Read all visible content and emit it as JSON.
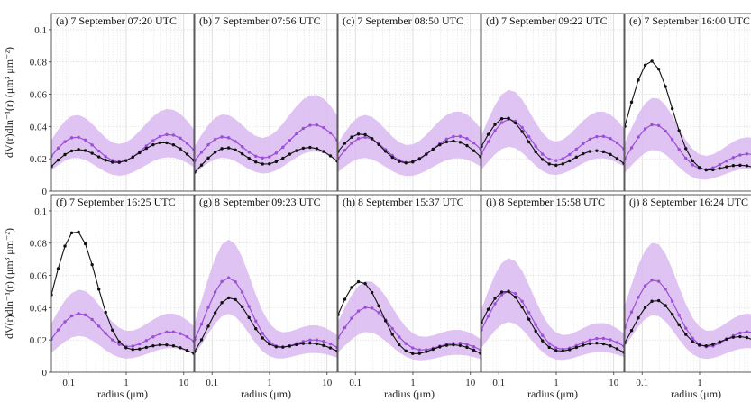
{
  "chart_data": {
    "type": "line",
    "x_scale": "log",
    "xlim": [
      0.05,
      15
    ],
    "ylim": [
      0,
      0.11
    ],
    "yticks": [
      "0",
      "0.02",
      "0.04",
      "0.06",
      "0.08",
      "0.1"
    ],
    "xticks": [
      "0.1",
      "1",
      "10"
    ],
    "ylabel": "dV(r)dln⁻¹(r) (μm³ μm⁻²)",
    "xlabel": "radius (μm)",
    "grid": true,
    "colors": {
      "black_series": "#111111",
      "purple_series": "#9b4fd6",
      "purple_band": "#d9b8f0"
    },
    "panels": [
      {
        "title": "(a) 7 September 07:20 UTC",
        "f1": [
          0.025,
          0.14,
          0.45
        ],
        "f2": [
          0.03,
          4.5,
          0.55
        ],
        "p1": [
          0.033,
          0.13,
          0.45
        ],
        "p2": [
          0.035,
          5.5,
          0.55
        ]
      },
      {
        "title": "(b) 7 September 07:56 UTC",
        "f1": [
          0.026,
          0.17,
          0.42
        ],
        "f2": [
          0.027,
          5.0,
          0.55
        ],
        "p1": [
          0.033,
          0.15,
          0.45
        ],
        "p2": [
          0.041,
          6.0,
          0.55
        ]
      },
      {
        "title": "(c) 7 September 08:50 UTC",
        "f1": [
          0.035,
          0.12,
          0.45
        ],
        "f2": [
          0.031,
          5.0,
          0.55
        ],
        "p1": [
          0.033,
          0.14,
          0.45
        ],
        "p2": [
          0.034,
          6.0,
          0.55
        ]
      },
      {
        "title": "(d) 7 September 09:22 UTC",
        "f1": [
          0.045,
          0.13,
          0.42
        ],
        "f2": [
          0.025,
          5.0,
          0.55
        ],
        "p1": [
          0.044,
          0.15,
          0.42
        ],
        "p2": [
          0.034,
          6.0,
          0.55
        ]
      },
      {
        "title": "(e) 7 September 16:00 UTC",
        "f1": [
          0.08,
          0.14,
          0.38
        ],
        "f2": [
          0.016,
          5.0,
          0.6
        ],
        "p1": [
          0.041,
          0.16,
          0.42
        ],
        "p2": [
          0.023,
          7.0,
          0.55
        ]
      },
      {
        "title": "(f) 7 September 16:25 UTC",
        "f1": [
          0.087,
          0.13,
          0.38
        ],
        "f2": [
          0.017,
          4.5,
          0.6
        ],
        "p1": [
          0.036,
          0.15,
          0.45
        ],
        "p2": [
          0.025,
          6.0,
          0.55
        ]
      },
      {
        "title": "(g) 8 September 09:23 UTC",
        "f1": [
          0.045,
          0.2,
          0.38
        ],
        "f2": [
          0.018,
          5.0,
          0.6
        ],
        "p1": [
          0.058,
          0.19,
          0.4
        ],
        "p2": [
          0.02,
          6.0,
          0.55
        ]
      },
      {
        "title": "(h) 8 September 15:37 UTC",
        "f1": [
          0.056,
          0.12,
          0.4
        ],
        "f2": [
          0.017,
          5.0,
          0.55
        ],
        "p1": [
          0.04,
          0.16,
          0.45
        ],
        "p2": [
          0.018,
          6.0,
          0.55
        ]
      },
      {
        "title": "(i) 8 September 15:58 UTC",
        "f1": [
          0.05,
          0.13,
          0.42
        ],
        "f2": [
          0.018,
          5.0,
          0.55
        ],
        "p1": [
          0.05,
          0.15,
          0.42
        ],
        "p2": [
          0.021,
          6.0,
          0.55
        ]
      },
      {
        "title": "(j) 8 September 16:24 UTC",
        "f1": [
          0.044,
          0.17,
          0.4
        ],
        "f2": [
          0.022,
          5.0,
          0.55
        ],
        "p1": [
          0.057,
          0.16,
          0.42
        ],
        "p2": [
          0.025,
          7.0,
          0.55
        ]
      }
    ]
  }
}
